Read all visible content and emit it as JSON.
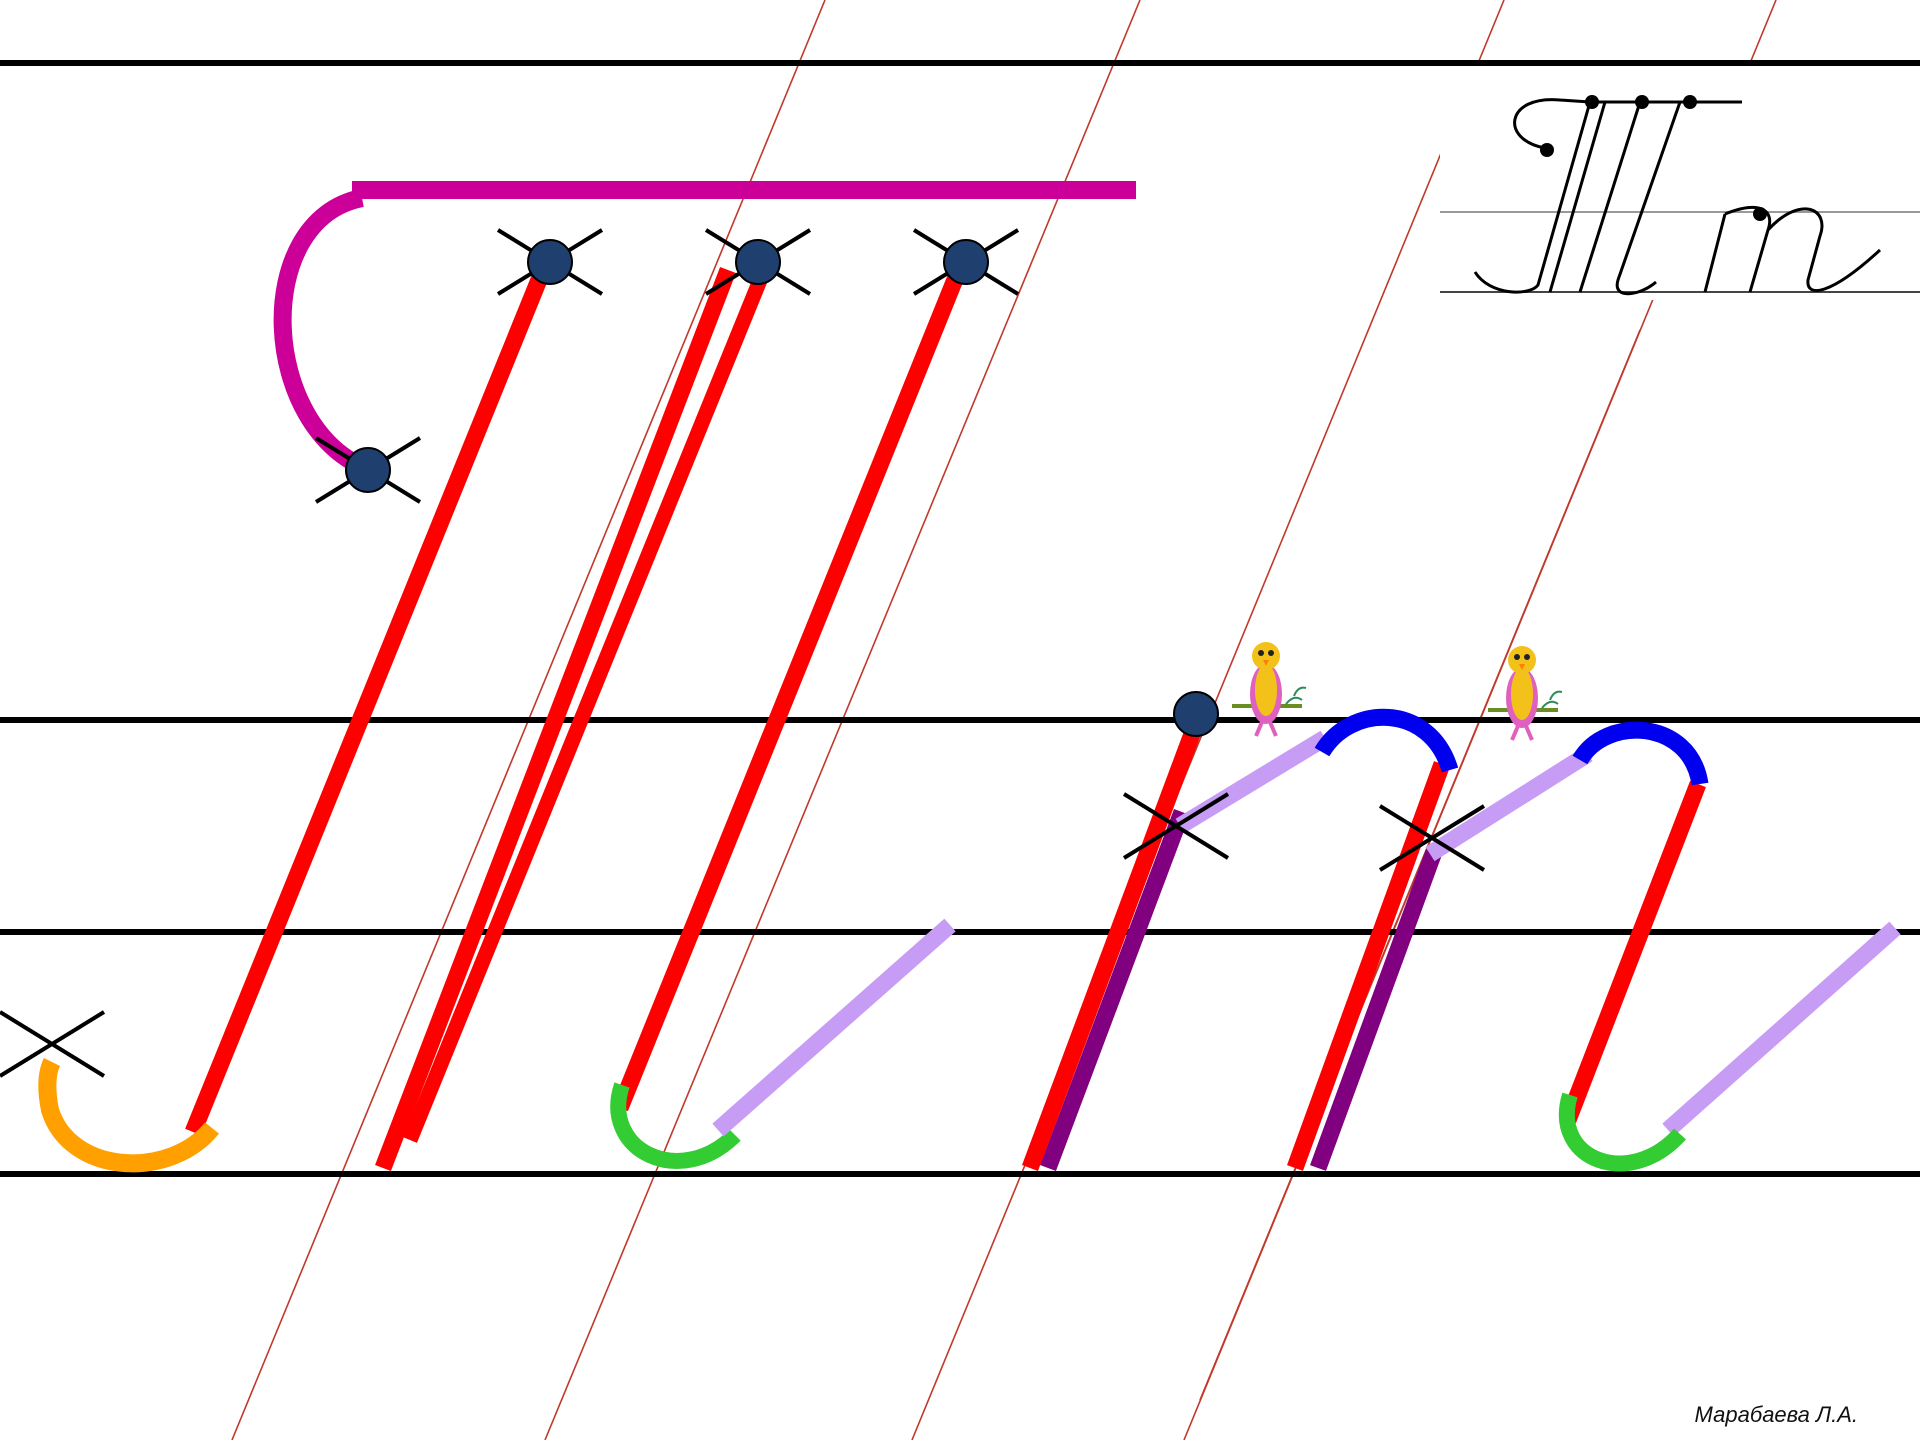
{
  "author": "Марабаева Л.А.",
  "sample_letters": "Тт",
  "colors": {
    "rule": "#000000",
    "slant": "#c0392b",
    "main_stroke": "#ff0000",
    "crossbar": "#cc0099",
    "hook_left": "#ff9f00",
    "hook_bottom": "#33cc33",
    "connector": "#c79cf5",
    "arch": "#0000ee",
    "shadow": "#800080",
    "dot": "#1f3f6e",
    "bird_body": "#f3c21a",
    "bird_wing": "#e060c0"
  }
}
